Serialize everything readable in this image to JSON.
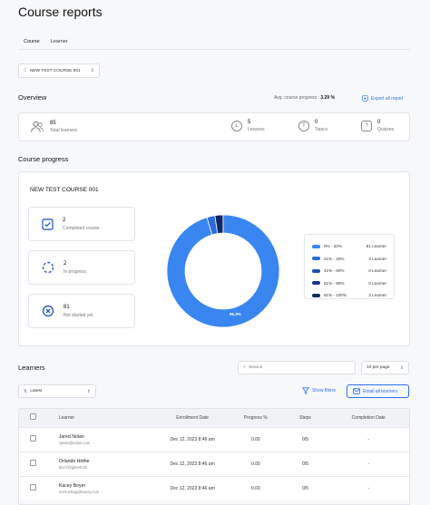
{
  "page": {
    "title": "Course reports"
  },
  "tabs": [
    {
      "label": "Course"
    },
    {
      "label": "Learner"
    }
  ],
  "course_select": {
    "value": "NEW TEST COURSE 001"
  },
  "overview": {
    "title": "Overview",
    "avg_label": "Avg. course progress :",
    "avg_value": "3.29 %",
    "export_label": "Export all report",
    "stats": {
      "learners": {
        "value": "85",
        "label": "Total learners"
      },
      "lessons": {
        "value": "5",
        "label": "Lessons"
      },
      "topics": {
        "value": "0",
        "label": "Topics"
      },
      "quizzes": {
        "value": "0",
        "label": "Quizzes"
      }
    }
  },
  "progress": {
    "title": "Course progress",
    "course_name": "NEW TEST COURSE 001",
    "completed": {
      "value": "2",
      "label": "Completed course"
    },
    "in_progress": {
      "value": "2",
      "label": "In progress"
    },
    "not_started": {
      "value": "81",
      "label": "Not started yet"
    },
    "donut_label": "95.3%",
    "colors": {
      "primary": "#3a86f0",
      "mid": "#2c6bd9",
      "dark": "#1f4fb0",
      "darker": "#16388a",
      "darkest": "#0f2966"
    }
  },
  "chart_data": {
    "type": "pie",
    "categories": [
      "0% - 20%",
      "21% - 40%",
      "41% - 60%",
      "61% - 80%",
      "81% - 100%"
    ],
    "values": [
      81,
      2,
      0,
      0,
      2
    ],
    "value_labels": [
      "81 Learner",
      "2 Learner",
      "0 Learner",
      "0 Learner",
      "2 Learner"
    ],
    "legend": "right",
    "donut": true
  },
  "learners": {
    "title": "Learners",
    "search_placeholder": "Search",
    "per_page": "10 per page",
    "sort": "Latest",
    "filter_label": "Show filters",
    "email_label": "Email all learners",
    "columns": {
      "learner": "Learner",
      "enrollment": "Enrollment Date",
      "progress": "Progress %",
      "steps": "Steps",
      "completion": "Completion Date"
    },
    "rows": [
      {
        "name": "Jared Nolan",
        "email": "sjleda@nolan.com",
        "date": "Dec 12, 2023 8:46 am",
        "progress": "0.00",
        "steps": "0/5",
        "completion": "-"
      },
      {
        "name": "Orlando Hirthe",
        "email": "dorr.f@gbeeh.tld",
        "date": "Dec 12, 2023 8:46 am",
        "progress": "0.00",
        "steps": "0/5",
        "completion": "-"
      },
      {
        "name": "Kacey Boyer",
        "email": "nomi.tdsag@kacey.com",
        "date": "Dec 12, 2023 8:46 am",
        "progress": "0.00",
        "steps": "0/5",
        "completion": "-"
      }
    ]
  }
}
